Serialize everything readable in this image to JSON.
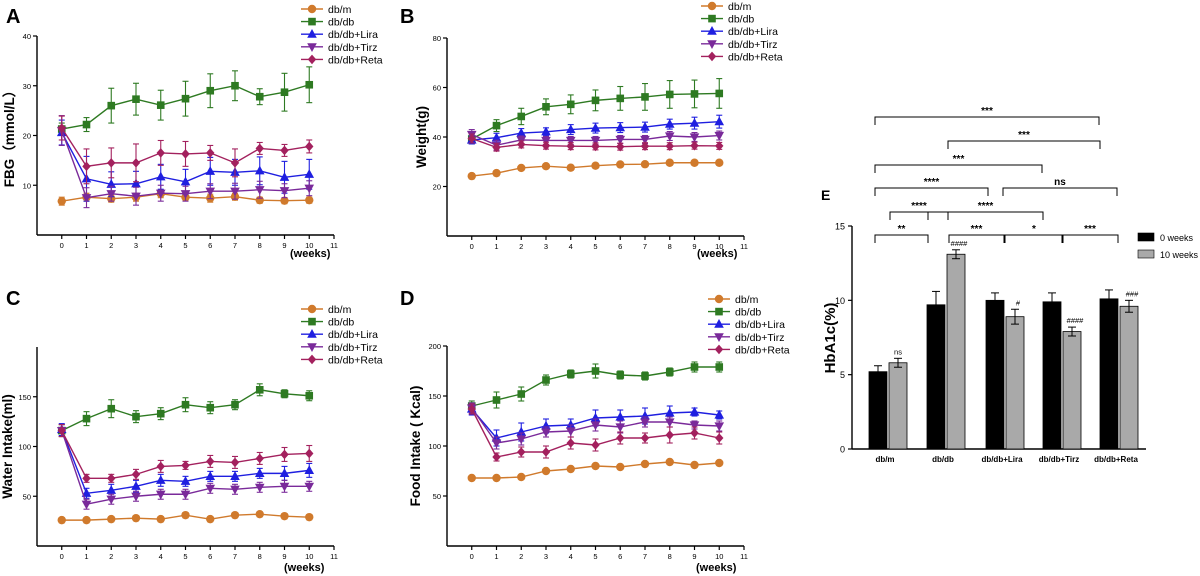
{
  "colors": {
    "db/m": "#d07a2c",
    "db/db": "#2e7a22",
    "db/db+Lira": "#1f1fe0",
    "db/db+Tirz": "#7a2a9a",
    "db/db+Reta": "#a3215e",
    "bar_0_weeks": "#000000",
    "bar_10_weeks": "#a9a9a9"
  },
  "markers": {
    "db/m": "circle",
    "db/db": "square",
    "db/db+Lira": "triangle-up",
    "db/db+Tirz": "triangle-down",
    "db/db+Reta": "diamond"
  },
  "chart_data": [
    {
      "panel": "A",
      "type": "line",
      "ylabel": "FBG（mmol/L）",
      "xlabel": "(weeks)",
      "ylim": [
        0,
        40
      ],
      "yticks": [
        10,
        20,
        30,
        40
      ],
      "xlim": [
        -1,
        11
      ],
      "xticks": [
        0,
        1,
        2,
        3,
        4,
        5,
        6,
        7,
        8,
        9,
        10,
        11
      ],
      "legend_position": "top-right",
      "x": [
        0,
        1,
        2,
        3,
        4,
        5,
        6,
        7,
        8,
        9,
        10
      ],
      "series": [
        {
          "name": "db/m",
          "values": [
            6.8,
            7.6,
            7.3,
            7.6,
            8.3,
            7.6,
            7.4,
            7.7,
            7.0,
            6.9,
            7.0
          ],
          "err": [
            0.8,
            0.8,
            0.7,
            0.8,
            0.8,
            0.7,
            0.8,
            0.7,
            0.6,
            0.6,
            0.6
          ]
        },
        {
          "name": "db/db",
          "values": [
            21.3,
            22.2,
            26.0,
            27.3,
            26.1,
            27.4,
            29.0,
            30.0,
            27.8,
            28.7,
            30.2
          ],
          "err": [
            1.2,
            1.4,
            3.5,
            3.2,
            3.0,
            3.5,
            3.4,
            3.0,
            1.6,
            3.8,
            3.6
          ]
        },
        {
          "name": "db/db+Lira",
          "values": [
            20.6,
            11.3,
            10.2,
            10.3,
            11.7,
            10.7,
            12.8,
            12.6,
            12.9,
            11.6,
            12.2
          ],
          "err": [
            2.5,
            4.5,
            2.5,
            2.5,
            2.5,
            2.5,
            2.8,
            2.6,
            2.8,
            3.2,
            3.0
          ]
        },
        {
          "name": "db/db+Tirz",
          "values": [
            21.0,
            7.5,
            8.3,
            7.8,
            8.4,
            8.3,
            8.8,
            8.8,
            9.1,
            8.9,
            9.4
          ],
          "err": [
            3.0,
            2.0,
            1.5,
            1.8,
            1.6,
            1.5,
            1.5,
            1.6,
            1.7,
            1.4,
            1.5
          ]
        },
        {
          "name": "db/db+Reta",
          "values": [
            21.5,
            13.8,
            14.5,
            14.5,
            16.5,
            16.3,
            16.5,
            14.5,
            17.4,
            17.0,
            17.8
          ],
          "err": [
            2.4,
            3.5,
            3.0,
            3.8,
            2.5,
            2.5,
            1.5,
            2.8,
            1.2,
            1.2,
            1.3
          ]
        }
      ]
    },
    {
      "panel": "B",
      "type": "line",
      "ylabel": "Weight(g)",
      "xlabel": "(weeks)",
      "ylim": [
        0,
        80
      ],
      "yticks": [
        20,
        40,
        60,
        80
      ],
      "xlim": [
        -1,
        11
      ],
      "xticks": [
        0,
        1,
        2,
        3,
        4,
        5,
        6,
        7,
        8,
        9,
        10,
        11
      ],
      "legend_position": "top-right",
      "x": [
        0,
        1,
        2,
        3,
        4,
        5,
        6,
        7,
        8,
        9,
        10
      ],
      "series": [
        {
          "name": "db/m",
          "values": [
            24.2,
            25.4,
            27.5,
            28.2,
            27.6,
            28.4,
            28.9,
            29.0,
            29.6,
            29.6,
            29.6
          ],
          "err": [
            0.5,
            0.5,
            0.6,
            0.5,
            0.5,
            0.5,
            0.5,
            0.5,
            0.5,
            0.5,
            0.5
          ]
        },
        {
          "name": "db/db",
          "values": [
            39.2,
            44.6,
            48.3,
            52.2,
            53.2,
            54.8,
            55.6,
            56.2,
            57.2,
            57.4,
            57.6
          ],
          "err": [
            2.0,
            2.4,
            3.3,
            3.2,
            3.8,
            4.2,
            4.8,
            5.4,
            5.6,
            5.6,
            6.0
          ]
        },
        {
          "name": "db/db+Lira",
          "values": [
            38.8,
            39.7,
            41.6,
            42.1,
            43.0,
            43.6,
            43.8,
            44.0,
            45.2,
            45.6,
            46.2
          ],
          "err": [
            1.6,
            1.8,
            1.8,
            1.6,
            2.0,
            2.0,
            2.0,
            2.0,
            2.0,
            2.4,
            2.6
          ]
        },
        {
          "name": "db/db+Tirz",
          "values": [
            41.0,
            36.7,
            38.8,
            38.6,
            38.6,
            38.6,
            39.0,
            39.0,
            40.4,
            40.0,
            40.6
          ],
          "err": [
            2.0,
            2.0,
            1.6,
            1.6,
            1.6,
            1.6,
            1.6,
            1.6,
            1.8,
            1.8,
            1.8
          ]
        },
        {
          "name": "db/db+Reta",
          "values": [
            39.4,
            35.8,
            37.0,
            36.5,
            36.3,
            36.2,
            36.1,
            36.3,
            36.3,
            36.5,
            36.4
          ],
          "err": [
            1.8,
            1.5,
            1.4,
            1.4,
            1.4,
            1.4,
            1.4,
            1.4,
            1.4,
            1.4,
            1.4
          ]
        }
      ]
    },
    {
      "panel": "C",
      "type": "line",
      "ylabel": "Water Intake(ml)",
      "xlabel": "(weeks)",
      "ylim": [
        0,
        200
      ],
      "yticks": [
        50,
        100,
        150
      ],
      "xlim": [
        -1,
        11
      ],
      "xticks": [
        0,
        1,
        2,
        3,
        4,
        5,
        6,
        7,
        8,
        9,
        10,
        11
      ],
      "legend_position": "top-right",
      "x": [
        0,
        1,
        2,
        3,
        4,
        5,
        6,
        7,
        8,
        9,
        10
      ],
      "series": [
        {
          "name": "db/m",
          "values": [
            26,
            26,
            27,
            28,
            27,
            31,
            27,
            31,
            32,
            30,
            29
          ],
          "err": [
            1.5,
            1.5,
            1.5,
            1.5,
            1.5,
            1.5,
            1.5,
            1.5,
            1.5,
            1.5,
            1.5
          ]
        },
        {
          "name": "db/db",
          "values": [
            116,
            128,
            138,
            130,
            133,
            142,
            139,
            142,
            157,
            153,
            151
          ],
          "err": [
            6,
            7,
            9,
            6,
            6,
            7,
            6,
            5,
            6,
            4,
            5
          ]
        },
        {
          "name": "db/db+Lira",
          "values": [
            117,
            53,
            56,
            60,
            66,
            65,
            70,
            70,
            73,
            73,
            76
          ],
          "err": [
            6,
            5,
            6,
            6,
            6,
            5,
            5,
            5,
            5,
            7,
            7
          ]
        },
        {
          "name": "db/db+Tirz",
          "values": [
            116,
            42,
            47,
            50,
            52,
            52,
            58,
            57,
            59,
            60,
            60
          ],
          "err": [
            6,
            5,
            5,
            5,
            5,
            5,
            5,
            5,
            5,
            6,
            5
          ]
        },
        {
          "name": "db/db+Reta",
          "values": [
            116,
            68,
            68,
            72,
            80,
            81,
            85,
            84,
            88,
            92,
            93
          ],
          "err": [
            6,
            4,
            4,
            5,
            6,
            4,
            6,
            6,
            6,
            7,
            8
          ]
        }
      ]
    },
    {
      "panel": "D",
      "type": "line",
      "ylabel": "Food Intake ( Kcal)",
      "xlabel": "(weeks)",
      "ylim": [
        0,
        200
      ],
      "yticks": [
        50,
        100,
        150,
        200
      ],
      "xlim": [
        -1,
        11
      ],
      "xticks": [
        0,
        1,
        2,
        3,
        4,
        5,
        6,
        7,
        8,
        9,
        10,
        11
      ],
      "legend_position": "top-right",
      "x": [
        0,
        1,
        2,
        3,
        4,
        5,
        6,
        7,
        8,
        9,
        10
      ],
      "series": [
        {
          "name": "db/m",
          "values": [
            68,
            68,
            69,
            75,
            77,
            80,
            79,
            82,
            84,
            81,
            83
          ],
          "err": [
            2,
            2,
            2,
            2,
            2,
            2,
            2,
            2,
            2,
            2,
            2
          ]
        },
        {
          "name": "db/db",
          "values": [
            140,
            146,
            152,
            166,
            172,
            175,
            171,
            170,
            174,
            179,
            179
          ],
          "err": [
            5,
            8,
            7,
            5,
            4,
            7,
            4,
            4,
            4,
            5,
            5
          ]
        },
        {
          "name": "db/db+Lira",
          "values": [
            137,
            108,
            114,
            120,
            121,
            128,
            129,
            130,
            133,
            134,
            131
          ],
          "err": [
            6,
            8,
            9,
            7,
            6,
            8,
            7,
            8,
            7,
            4,
            4
          ]
        },
        {
          "name": "db/db+Tirz",
          "values": [
            138,
            103,
            107,
            114,
            115,
            121,
            119,
            124,
            124,
            121,
            120
          ],
          "err": [
            5,
            6,
            6,
            5,
            6,
            6,
            6,
            5,
            5,
            4,
            5
          ]
        },
        {
          "name": "db/db+Reta",
          "values": [
            137,
            89,
            94,
            94,
            103,
            101,
            108,
            108,
            111,
            113,
            108
          ],
          "err": [
            5,
            4,
            5,
            6,
            6,
            6,
            6,
            5,
            8,
            6,
            6
          ]
        }
      ]
    },
    {
      "panel": "E",
      "type": "bar",
      "ylabel": "HbA1c(%)",
      "ylim": [
        0,
        15
      ],
      "yticks": [
        0,
        5,
        10,
        15
      ],
      "categories": [
        "db/m",
        "db/db",
        "db/db+Lira",
        "db/db+Tirz",
        "db/db+Reta"
      ],
      "legend_position": "right",
      "series": [
        {
          "name": "0 weeks",
          "values": [
            5.2,
            9.7,
            10.0,
            9.9,
            10.1
          ],
          "err": [
            0.4,
            0.9,
            0.5,
            0.6,
            0.6
          ]
        },
        {
          "name": "10 weeks",
          "values": [
            5.8,
            13.1,
            8.9,
            7.9,
            9.6
          ],
          "err": [
            0.3,
            0.3,
            0.5,
            0.3,
            0.4
          ]
        }
      ],
      "bar_annotations": [
        {
          "category": "db/m",
          "series": "10 weeks",
          "text": "ns"
        },
        {
          "category": "db/db",
          "series": "10 weeks",
          "text": "####"
        },
        {
          "category": "db/db+Lira",
          "series": "10 weeks",
          "text": "#"
        },
        {
          "category": "db/db+Tirz",
          "series": "10 weeks",
          "text": "####"
        },
        {
          "category": "db/db+Reta",
          "series": "10 weeks",
          "text": "###"
        }
      ],
      "comparisons": [
        {
          "from": "db/m",
          "to": "db/db+Reta",
          "label": "***"
        },
        {
          "from": "db/db",
          "to": "db/db+Reta",
          "label": "***"
        },
        {
          "from": "db/m",
          "to": "db/db+Tirz",
          "label": "***"
        },
        {
          "from": "db/m",
          "to": "db/db+Lira",
          "label": "****"
        },
        {
          "from": "db/db+Lira",
          "to": "db/db+Reta",
          "label": "ns"
        },
        {
          "from": "db/m",
          "to": "db/db",
          "label": "**"
        },
        {
          "from": "db/db",
          "to": "db/db+Lira",
          "label": "****"
        },
        {
          "from": "db/db",
          "to": "db/db+Tirz",
          "label": "****"
        },
        {
          "from": "db/db",
          "to": "db/db+Lira",
          "label": "***"
        },
        {
          "from": "db/db+Lira",
          "to": "db/db+Tirz",
          "label": "*"
        },
        {
          "from": "db/db+Tirz",
          "to": "db/db+Reta",
          "label": "***"
        }
      ]
    }
  ]
}
